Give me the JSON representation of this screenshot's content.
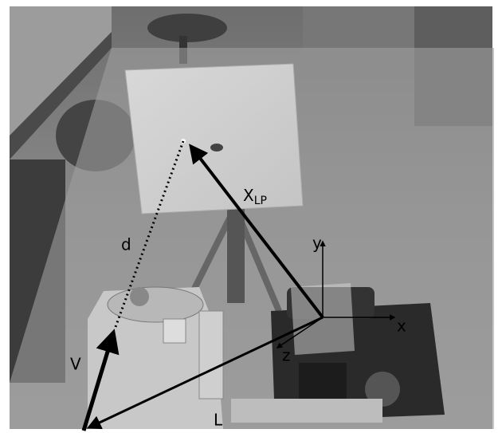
{
  "annotations": {
    "d": "d",
    "x_lp": "X",
    "x_lp_subscript": "LP",
    "y": "y",
    "x": "x",
    "z": "z",
    "v": "V",
    "l": "L"
  }
}
